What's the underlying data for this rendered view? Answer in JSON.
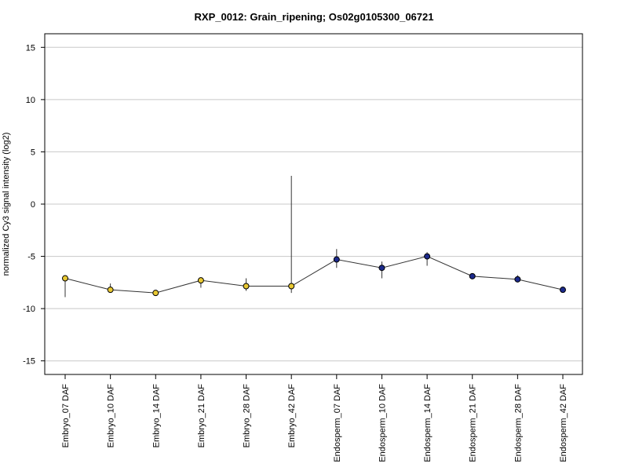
{
  "chart_data": {
    "type": "line",
    "title": "RXP_0012: Grain_ripening; Os02g0105300_06721",
    "ylabel": "normalized Cy3 signal intensity (log2)",
    "xlabel": "",
    "ylim": [
      -16.3,
      16.3
    ],
    "yticks": [
      -15,
      -10,
      -5,
      0,
      5,
      10,
      15
    ],
    "grid": "horizontal",
    "categories": [
      "Embryo_07 DAF",
      "Embryo_10 DAF",
      "Embryo_14 DAF",
      "Embryo_21 DAF",
      "Embryo_28 DAF",
      "Embryo_42 DAF",
      "Endosperm_07 DAF",
      "Endosperm_10 DAF",
      "Endosperm_14 DAF",
      "Endosperm_21 DAF",
      "Endosperm_28 DAF",
      "Endosperm_42 DAF"
    ],
    "values": [
      -7.1,
      -8.2,
      -8.5,
      -7.3,
      -7.85,
      -7.85,
      -5.3,
      -6.1,
      -5.0,
      -6.9,
      -7.2,
      -8.2
    ],
    "error_low": [
      -8.9,
      -8.4,
      -8.5,
      -8.0,
      -8.3,
      -8.5,
      -6.1,
      -7.1,
      -5.9,
      -6.9,
      -7.3,
      -8.3
    ],
    "error_high": [
      -7.0,
      -7.6,
      -8.4,
      -7.1,
      -7.1,
      2.7,
      -4.3,
      -5.5,
      -4.6,
      -6.8,
      -6.8,
      -7.9
    ],
    "point_colors": [
      "#e8c832",
      "#e8c832",
      "#e8c832",
      "#e8c832",
      "#e8c832",
      "#e8c832",
      "#1c2a8c",
      "#1c2a8c",
      "#1c2a8c",
      "#1c2a8c",
      "#1c2a8c",
      "#1c2a8c"
    ]
  }
}
